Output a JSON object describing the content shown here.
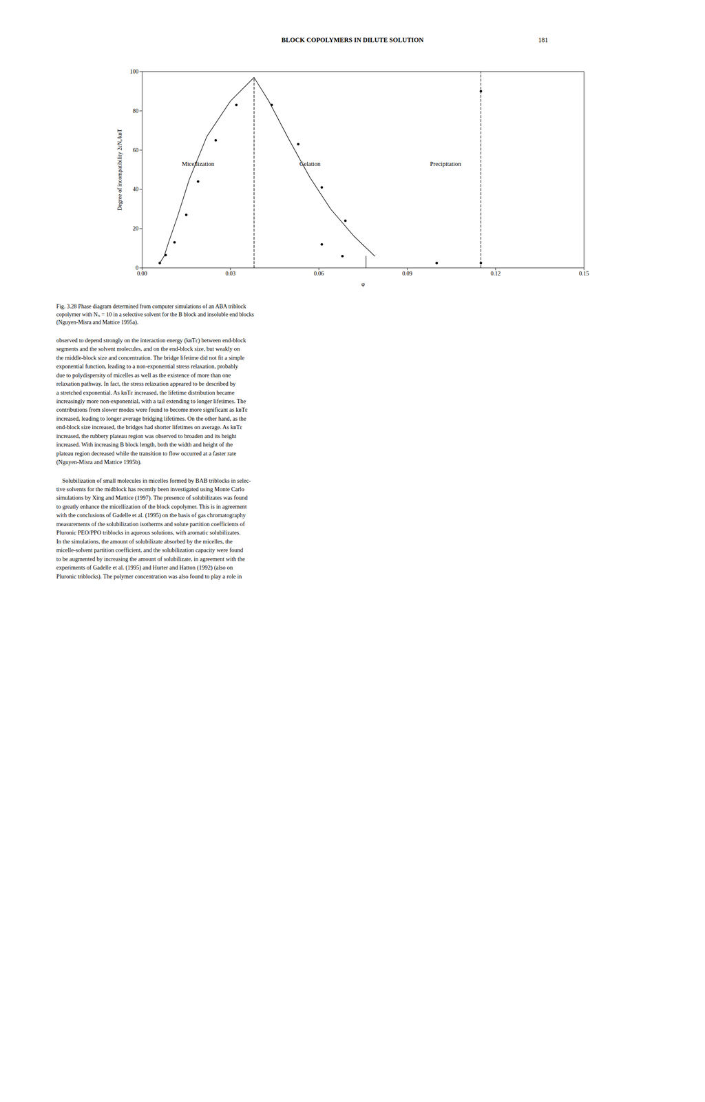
{
  "chart_data": {
    "type": "line",
    "header": "BLOCK COPOLYMERS IN DILUTE SOLUTION",
    "page_number": "181",
    "xlabel": "φ",
    "ylabel": "Degree of incompatibility 2εNₐ/kʙT",
    "xlim": [
      0.0,
      0.15
    ],
    "ylim": [
      0,
      100
    ],
    "xticks": [
      {
        "value": 0.0,
        "label": "0.00"
      },
      0.03,
      0.06,
      0.09,
      0.12,
      0.15
    ],
    "yticks": [
      0,
      20,
      40,
      60,
      80,
      100
    ],
    "grid": false,
    "series": [
      {
        "type": "line",
        "color": "#000000",
        "line_style": "solid",
        "x": [
          0.006,
          0.0075,
          0.009,
          0.012,
          0.016,
          0.022,
          0.03,
          0.038
        ],
        "values": [
          2.5,
          6,
          13,
          26,
          45,
          67,
          85,
          97
        ]
      },
      {
        "type": "line",
        "color": "#000000",
        "line_style": "dashed",
        "x": [
          0.038,
          0.038
        ],
        "values": [
          0,
          97
        ]
      },
      {
        "type": "line",
        "color": "#000000",
        "line_style": "solid",
        "x": [
          0.038,
          0.043,
          0.05,
          0.057,
          0.064,
          0.072,
          0.079
        ],
        "values": [
          97,
          85,
          65,
          46,
          30,
          16,
          6
        ]
      },
      {
        "type": "line",
        "color": "#000000",
        "line_style": "solid",
        "x": [
          0.076,
          0.076
        ],
        "values": [
          0,
          6
        ]
      },
      {
        "type": "line",
        "color": "#000000",
        "line_style": "dashed",
        "x": [
          0.115,
          0.115
        ],
        "values": [
          0,
          100
        ]
      },
      {
        "type": "scatter",
        "color": "#000000",
        "marker": "circle",
        "x": [
          0.006,
          0.008,
          0.011,
          0.015,
          0.019,
          0.025,
          0.032
        ],
        "values": [
          2.5,
          6.5,
          13,
          27,
          44,
          65,
          83
        ]
      },
      {
        "type": "scatter",
        "color": "#000000",
        "marker": "circle",
        "x": [
          0.044,
          0.053,
          0.061,
          0.069
        ],
        "values": [
          83,
          63,
          41,
          24
        ]
      },
      {
        "type": "scatter",
        "color": "#000000",
        "marker": "circle",
        "x": [
          0.061,
          0.068,
          0.1,
          0.115
        ],
        "values": [
          12,
          6,
          2.5,
          2.5
        ]
      },
      {
        "type": "scatter",
        "color": "#000000",
        "marker": "circle",
        "x": [
          0.115
        ],
        "values": [
          90
        ]
      }
    ],
    "annotations": [
      {
        "text": "Micellization",
        "x": 0.019,
        "y": 53
      },
      {
        "text": "Gelation",
        "x": 0.057,
        "y": 53
      },
      {
        "text": "Precipitation",
        "x": 0.103,
        "y": 53
      }
    ],
    "caption": "Fig. 3.28 Phase diagram determined from computer simulations of an ABA triblock\ncopolymer with Nₙ = 10 in a selective solvent for the B block and insoluble end blocks\n(Nguyen-Misra and Mattice 1995a).",
    "body_text": [
      "observed to depend strongly on the interaction energy (kʙTε) between end-block\nsegments and the solvent molecules, and on the end-block size, but weakly on\nthe middle-block size and concentration. The bridge lifetime did not fit a simple\nexponential function, leading to a non-exponential stress relaxation, probably\ndue to polydispersity of micelles as well as the existence of more than one\nrelaxation pathway. In fact, the stress relaxation appeared to be described by\na stretched exponential. As kʙTε increased, the lifetime distribution became\nincreasingly more non-exponential, with a tail extending to longer lifetimes. The\ncontributions from slower modes were found to become more significant as kʙTε\nincreased, leading to longer average bridging lifetimes. On the other hand, as the\nend-block size increased, the bridges had shorter lifetimes on average. As kʙTε\nincreased, the rubbery plateau region was observed to broaden and its height\nincreased. With increasing B block length, both the width and height of the\nplateau region decreased while the transition to flow occurred at a faster rate\n(Nguyen-Misra and Mattice 1995b).",
      "    Solubilization of small molecules in micelles formed by BAB triblocks in selec-\ntive solvents for the midblock has recently been investigated using Monte Carlo\nsimulations by Xing and Mattice (1997). The presence of solubilizates was found\nto greatly enhance the micellization of the block copolymer. This is in agreement\nwith the conclusions of Gadelle et al. (1995) on the basis of gas chromatography\nmeasurements of the solubilization isotherms and solute partition coefficients of\nPluronic PEO/PPO triblocks in aqueous solutions, with aromatic solubilizates.\nIn the simulations, the amount of solubilizate absorbed by the micelles, the\nmicelle-solvent partition coefficient, and the solubilization capacity were found\nto be augmented by increasing the amount of solubilizate, in agreement with the\nexperiments of Gadelle et al. (1995) and Hurter and Hatton (1992) (also on\nPluronic triblocks). The polymer concentration was also found to play a role in"
    ]
  }
}
